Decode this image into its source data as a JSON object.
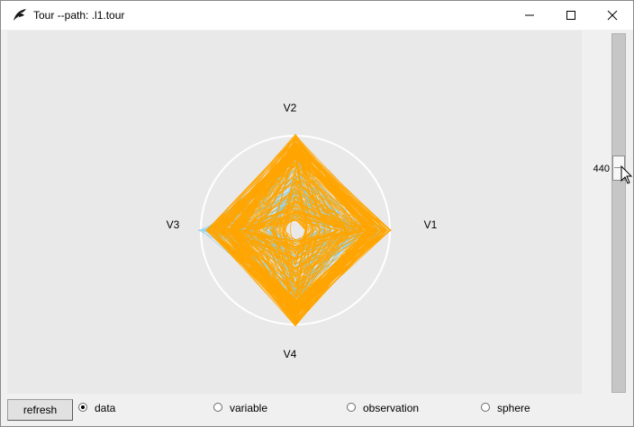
{
  "window": {
    "title": "Tour --path: .l1.tour",
    "controls": [
      "minimize",
      "maximize",
      "close"
    ]
  },
  "plot": {
    "axes": [
      {
        "name": "V1",
        "direction": "right"
      },
      {
        "name": "V2",
        "direction": "up"
      },
      {
        "name": "V3",
        "direction": "left"
      },
      {
        "name": "V4",
        "direction": "down"
      }
    ],
    "circle_color": "#ffffff",
    "colors": {
      "primary": "#ffa500",
      "secondary": "#87ceeb",
      "background": "#e9e9e9"
    }
  },
  "slider": {
    "value": "440"
  },
  "bottom": {
    "refresh_label": "refresh",
    "options": [
      {
        "label": "data",
        "selected": true
      },
      {
        "label": "variable",
        "selected": false
      },
      {
        "label": "observation",
        "selected": false
      },
      {
        "label": "sphere",
        "selected": false
      }
    ]
  },
  "icons": [
    "app-feather-icon",
    "minimize-icon",
    "maximize-icon",
    "close-icon",
    "mouse-cursor-icon"
  ]
}
